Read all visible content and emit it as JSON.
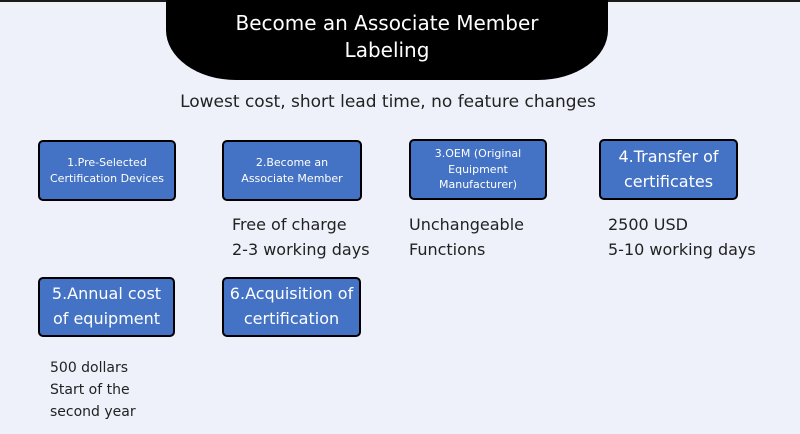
{
  "header": {
    "title_line1": "Become an Associate Member",
    "title_line2": "Labeling"
  },
  "subtitle": "Lowest cost, short lead time, no feature changes",
  "steps": [
    {
      "label": "1.Pre-Selected Certification Devices"
    },
    {
      "label": "2.Become an Associate Member"
    },
    {
      "label": "3.OEM (Original Equipment Manufacturer)"
    },
    {
      "label": "4.Transfer of certificates"
    },
    {
      "label": "5.Annual cost of equipment"
    },
    {
      "label": "6.Acquisition of certification"
    }
  ],
  "notes": {
    "step2": [
      "Free of charge",
      "2-3 working days"
    ],
    "step3": [
      "Unchangeable",
      "Functions"
    ],
    "step4": [
      "2500 USD",
      "5-10 working days"
    ],
    "step5": [
      "500 dollars",
      "Start of the",
      "second year"
    ]
  },
  "colors": {
    "box_fill": "#4472c4",
    "header_fill": "#000000",
    "background": "#eef1fa"
  }
}
